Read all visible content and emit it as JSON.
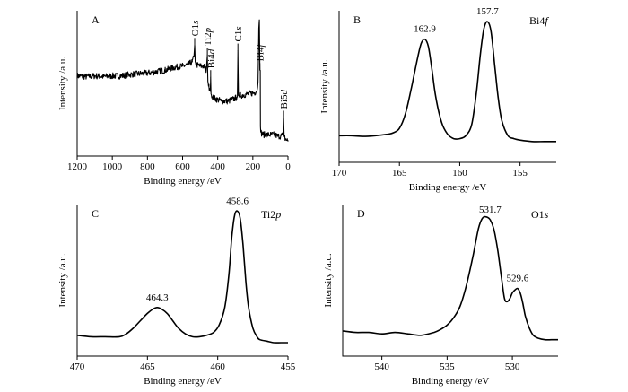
{
  "chart_data": [
    {
      "id": "A",
      "type": "line",
      "panel_label": "A",
      "xlabel": "Binding energy /eV",
      "ylabel": "Intensity /a.u.",
      "xlim": [
        1200,
        0
      ],
      "x_reversed": true,
      "xticks": [
        1200,
        1000,
        800,
        600,
        400,
        200,
        0
      ],
      "ylim": [
        0,
        1
      ],
      "noisy": true,
      "series": [
        {
          "x": [
            1200,
            1150,
            1100,
            1050,
            1000,
            950,
            900,
            850,
            800,
            750,
            700,
            650,
            600,
            570,
            545,
            535,
            531,
            528,
            520,
            500,
            480,
            465,
            459,
            456,
            450,
            446,
            442,
            440,
            438,
            430,
            420,
            410,
            400,
            380,
            360,
            340,
            320,
            300,
            288,
            285,
            282,
            270,
            250,
            230,
            210,
            190,
            175,
            170,
            166,
            163,
            160,
            158,
            157,
            155,
            150,
            140,
            120,
            100,
            80,
            60,
            40,
            28,
            25,
            22,
            15,
            5,
            0
          ],
          "y": [
            0.56,
            0.555,
            0.56,
            0.555,
            0.56,
            0.56,
            0.57,
            0.575,
            0.58,
            0.59,
            0.6,
            0.62,
            0.63,
            0.64,
            0.66,
            0.7,
            0.78,
            0.66,
            0.64,
            0.63,
            0.63,
            0.6,
            0.71,
            0.52,
            0.48,
            0.47,
            0.45,
            0.55,
            0.43,
            0.41,
            0.4,
            0.395,
            0.39,
            0.38,
            0.38,
            0.38,
            0.39,
            0.4,
            0.41,
            0.74,
            0.42,
            0.42,
            0.425,
            0.43,
            0.435,
            0.44,
            0.46,
            0.55,
            0.9,
            0.96,
            0.6,
            0.6,
            0.2,
            0.16,
            0.15,
            0.14,
            0.14,
            0.14,
            0.14,
            0.13,
            0.13,
            0.14,
            0.26,
            0.13,
            0.11,
            0.1,
            0.1
          ]
        }
      ],
      "annotations": [
        {
          "x": 531,
          "text": "O1s"
        },
        {
          "x": 459,
          "text": "Ti2p"
        },
        {
          "x": 440,
          "text": "Bi4d"
        },
        {
          "x": 285,
          "text": "C1s"
        },
        {
          "x": 160,
          "text": "Bi4f"
        },
        {
          "x": 25,
          "text": "Bi5d"
        }
      ]
    },
    {
      "id": "B",
      "type": "line",
      "panel_label": "B",
      "title": "Bi4f",
      "xlabel": "Binding energy /eV",
      "ylabel": "Intensity /a.u.",
      "xlim": [
        170,
        152
      ],
      "x_reversed": true,
      "xticks": [
        170,
        165,
        160,
        155
      ],
      "ylim": [
        0,
        1
      ],
      "series": [
        {
          "x": [
            170,
            169,
            168,
            167,
            166,
            165.5,
            165,
            164.5,
            164,
            163.5,
            163.2,
            162.9,
            162.6,
            162.3,
            162,
            161.5,
            161,
            160.5,
            160,
            159.5,
            159,
            158.6,
            158.3,
            158,
            157.7,
            157.4,
            157.1,
            156.8,
            156.5,
            156,
            155.5,
            155,
            154,
            153,
            152
          ],
          "y": [
            0.17,
            0.17,
            0.165,
            0.17,
            0.18,
            0.19,
            0.22,
            0.32,
            0.5,
            0.7,
            0.8,
            0.83,
            0.78,
            0.62,
            0.44,
            0.26,
            0.18,
            0.15,
            0.15,
            0.17,
            0.25,
            0.48,
            0.72,
            0.9,
            0.95,
            0.88,
            0.65,
            0.42,
            0.27,
            0.17,
            0.15,
            0.14,
            0.13,
            0.13,
            0.13
          ]
        }
      ],
      "annotations": [
        {
          "x": 162.9,
          "text": "162.9"
        },
        {
          "x": 157.7,
          "text": "157.7"
        }
      ]
    },
    {
      "id": "C",
      "type": "line",
      "panel_label": "C",
      "title": "Ti2p",
      "xlabel": "Binding energy /eV",
      "ylabel": "Intensity /a.u.",
      "xlim": [
        470,
        455
      ],
      "x_reversed": true,
      "xticks": [
        470,
        465,
        460,
        455
      ],
      "ylim": [
        0,
        1
      ],
      "series": [
        {
          "x": [
            470,
            469,
            468,
            467,
            466.5,
            466,
            465.5,
            465,
            464.6,
            464.3,
            464,
            463.6,
            463.2,
            462.8,
            462.3,
            461.8,
            461.3,
            460.8,
            460.3,
            459.9,
            459.5,
            459.2,
            459,
            458.8,
            458.6,
            458.4,
            458.2,
            458,
            457.8,
            457.5,
            457.2,
            457,
            456.5,
            456,
            455.5,
            455
          ],
          "y": [
            0.13,
            0.12,
            0.12,
            0.12,
            0.14,
            0.18,
            0.23,
            0.28,
            0.31,
            0.32,
            0.31,
            0.28,
            0.23,
            0.18,
            0.14,
            0.12,
            0.12,
            0.13,
            0.15,
            0.2,
            0.32,
            0.55,
            0.8,
            0.95,
            0.98,
            0.93,
            0.75,
            0.5,
            0.32,
            0.18,
            0.12,
            0.1,
            0.09,
            0.08,
            0.08,
            0.08
          ]
        }
      ],
      "annotations": [
        {
          "x": 464.3,
          "text": "464.3"
        },
        {
          "x": 458.6,
          "text": "458.6"
        }
      ]
    },
    {
      "id": "D",
      "type": "line",
      "panel_label": "D",
      "title": "O1s",
      "xlabel": "Binding energy /eV",
      "ylabel": "Intensity /a.u.",
      "xlim": [
        543,
        526.5
      ],
      "x_reversed": true,
      "xticks": [
        540,
        535,
        530
      ],
      "ylim": [
        0,
        1
      ],
      "series": [
        {
          "x": [
            543,
            542,
            541,
            540,
            539,
            538,
            537,
            536,
            535.5,
            535,
            534.5,
            534,
            533.5,
            533,
            532.6,
            532.3,
            532,
            531.7,
            531.4,
            531.1,
            530.8,
            530.6,
            530.4,
            530.2,
            530,
            529.8,
            529.6,
            529.4,
            529.2,
            529,
            528.7,
            528.4,
            528,
            527.5,
            527,
            526.5
          ],
          "y": [
            0.16,
            0.15,
            0.15,
            0.14,
            0.15,
            0.14,
            0.13,
            0.15,
            0.17,
            0.2,
            0.25,
            0.33,
            0.48,
            0.68,
            0.86,
            0.93,
            0.94,
            0.92,
            0.85,
            0.7,
            0.5,
            0.38,
            0.36,
            0.38,
            0.42,
            0.44,
            0.45,
            0.42,
            0.35,
            0.26,
            0.18,
            0.13,
            0.11,
            0.1,
            0.1,
            0.1
          ]
        }
      ],
      "annotations": [
        {
          "x": 531.7,
          "text": "531.7"
        },
        {
          "x": 529.6,
          "text": "529.6"
        }
      ]
    }
  ]
}
